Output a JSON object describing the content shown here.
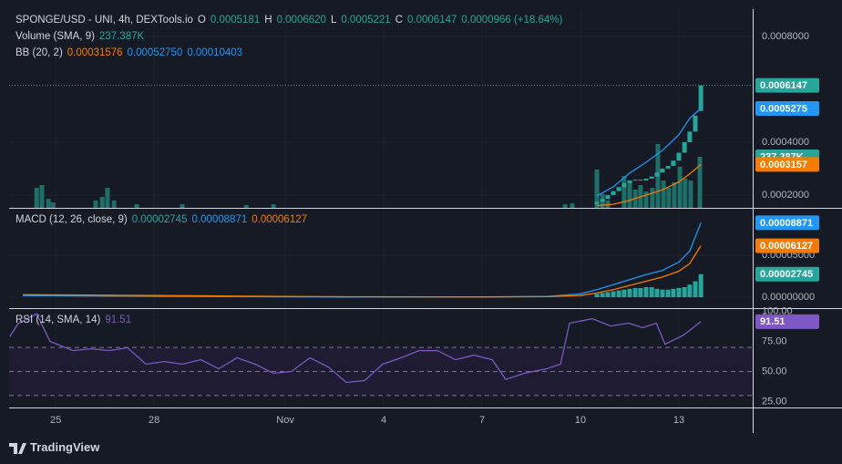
{
  "header": {
    "brand": "TradingView"
  },
  "chart_data": [
    {
      "type": "candlestick",
      "legend": [
        [
          {
            "text": "SPONGE/USD - UNI, 4h, DEXTools.io",
            "color": "#d1d4dc"
          },
          {
            "text": "O",
            "color": "#d1d4dc"
          },
          {
            "text": "0.0005181",
            "color": "#26a69a"
          },
          {
            "text": "H",
            "color": "#d1d4dc"
          },
          {
            "text": "0.0006620",
            "color": "#26a69a"
          },
          {
            "text": "L",
            "color": "#d1d4dc"
          },
          {
            "text": "0.0005221",
            "color": "#26a69a"
          },
          {
            "text": "C",
            "color": "#d1d4dc"
          },
          {
            "text": "0.0006147",
            "color": "#26a69a"
          },
          {
            "text": "0.0000966 (+18.64%)",
            "color": "#26a69a"
          }
        ],
        [
          {
            "text": "Volume (SMA, 9)",
            "color": "#d1d4dc"
          },
          {
            "text": "237.387K",
            "color": "#26a69a"
          }
        ],
        [
          {
            "text": "BB (20, 2)",
            "color": "#d1d4dc"
          },
          {
            "text": "0.00031576",
            "color": "#f57c00"
          },
          {
            "text": "0.00052750",
            "color": "#2196f3"
          },
          {
            "text": "0.00010403",
            "color": "#2196f3"
          }
        ]
      ],
      "ylim": [
        0.0001517,
        0.000903
      ],
      "yticks": [
        {
          "value": 0.0008,
          "label": "0.0008000"
        },
        {
          "value": 0.0004,
          "label": "0.0004000"
        },
        {
          "value": 0.0002,
          "label": "0.0002000"
        }
      ],
      "grid": true,
      "x": [
        41.5,
        41.67,
        41.83,
        42.0,
        42.17,
        42.33,
        42.5,
        42.67,
        42.83,
        43.0,
        43.17,
        43.33,
        43.5,
        43.67,
        43.83,
        44.0,
        44.17,
        44.33,
        44.5,
        44.67
      ],
      "open": [
        0.000165,
        0.000175,
        0.000185,
        0.0002,
        0.000215,
        0.00023,
        0.000245,
        0.000255,
        0.000258,
        0.000255,
        0.000262,
        0.00027,
        0.000285,
        0.0003,
        0.00031,
        0.00033,
        0.00036,
        0.0004,
        0.00044,
        0.0005181
      ],
      "close": [
        0.000175,
        0.000185,
        0.0002,
        0.000215,
        0.00023,
        0.000245,
        0.000255,
        0.000258,
        0.000255,
        0.000262,
        0.00027,
        0.000285,
        0.0003,
        0.00031,
        0.00033,
        0.00036,
        0.0004,
        0.00044,
        0.0005,
        0.0006147
      ],
      "up_color": "#26a69a",
      "down_color": "#ef5350",
      "volume": {
        "color": "#1f6f68",
        "ylim": [
          0,
          924000
        ],
        "x": [
          24.42,
          24.58,
          24.78,
          24.92,
          26.22,
          26.42,
          26.58,
          26.78,
          27.47,
          28.86,
          30.81,
          31.64,
          40.53,
          40.75,
          41.5,
          41.67,
          41.83,
          42.33,
          42.5,
          42.67,
          42.83,
          43.0,
          43.19,
          43.36,
          43.53,
          43.69,
          43.86,
          44.03,
          44.19,
          44.36,
          44.64
        ],
        "values": [
          93000,
          106000,
          42000,
          25000,
          34000,
          51000,
          93000,
          34000,
          17000,
          17000,
          13000,
          17000,
          17000,
          21000,
          178000,
          64000,
          34000,
          148000,
          119000,
          85000,
          106000,
          76000,
          93000,
          297000,
          127000,
          93000,
          119000,
          191000,
          136000,
          127000,
          237387
        ]
      },
      "series": [
        {
          "kind": "line",
          "color": "#2196f3",
          "x": [
            41.5,
            42.0,
            42.5,
            43.0,
            43.5,
            44.0,
            44.33,
            44.67
          ],
          "values": [
            0.000197,
            0.000231,
            0.000283,
            0.000324,
            0.000369,
            0.000428,
            0.00049,
            0.0005275
          ]
        },
        {
          "kind": "line",
          "color": "#f57c00",
          "x": [
            41.5,
            42.0,
            42.5,
            43.0,
            43.5,
            44.0,
            44.33,
            44.67
          ],
          "values": [
            0.00016,
            0.000165,
            0.00018,
            0.0002,
            0.00022,
            0.00025,
            0.00028,
            0.0003157
          ]
        }
      ],
      "tags": [
        {
          "value": 0.0006147,
          "label": "0.0006147",
          "color": "#26a69a",
          "line": true
        },
        {
          "value": 0.0005275,
          "label": "0.0005275",
          "color": "#2196f3"
        },
        {
          "value": 237387,
          "label": "237.387K",
          "color": "#26a69a",
          "scale": "volume"
        },
        {
          "value": 0.0003157,
          "label": "0.0003157",
          "color": "#f57c00"
        }
      ]
    },
    {
      "type": "line",
      "legend": [
        [
          {
            "text": "MACD (12, 26, close, 9)",
            "color": "#d1d4dc"
          },
          {
            "text": "0.00002745",
            "color": "#26a69a"
          },
          {
            "text": "0.00008871",
            "color": "#2196f3"
          },
          {
            "text": "0.00006127",
            "color": "#f57c00"
          }
        ]
      ],
      "ylim": [
        -1.3e-05,
        0.0001054
      ],
      "yticks": [
        {
          "value": 5e-05,
          "label": "0.00005000"
        },
        {
          "value": 0,
          "label": "0.00000000"
        }
      ],
      "grid": true,
      "series": [
        {
          "kind": "histogram",
          "color": "#26a69a",
          "x": [
            41.5,
            41.67,
            41.83,
            42.0,
            42.17,
            42.33,
            42.5,
            42.67,
            42.83,
            43.0,
            43.17,
            43.33,
            43.5,
            43.67,
            43.83,
            44.0,
            44.17,
            44.33,
            44.5,
            44.67
          ],
          "values": [
            4e-06,
            5e-06,
            6e-06,
            7e-06,
            8e-06,
            9e-06,
            1e-05,
            1.1e-05,
            1.1e-05,
            1.2e-05,
            1.2e-05,
            1e-05,
            9e-06,
            9e-06,
            1e-05,
            1.1e-05,
            1.2e-05,
            1.5e-05,
            1.9e-05,
            2.745e-05
          ]
        },
        {
          "kind": "line",
          "color": "#2196f3",
          "x": [
            24,
            26,
            28,
            30,
            32,
            34,
            36,
            38,
            40,
            41,
            41.5,
            42,
            42.5,
            43,
            43.5,
            44,
            44.33,
            44.67
          ],
          "values": [
            2e-06,
            1.5e-06,
            1e-06,
            8e-07,
            5e-07,
            3e-07,
            4e-07,
            3e-07,
            1e-06,
            4e-06,
            9e-06,
            1.5e-05,
            2.1e-05,
            2.7e-05,
            3.2e-05,
            4.2e-05,
            5.5e-05,
            8.871e-05
          ]
        },
        {
          "kind": "line",
          "color": "#f57c00",
          "x": [
            24,
            26,
            28,
            30,
            32,
            34,
            36,
            38,
            40,
            41,
            41.5,
            42,
            42.5,
            43,
            43.5,
            44,
            44.33,
            44.67
          ],
          "values": [
            3e-06,
            2.5e-06,
            2e-06,
            1.5e-06,
            1e-06,
            6e-07,
            5e-07,
            4e-07,
            7e-07,
            2e-06,
            5e-06,
            9e-06,
            1.4e-05,
            1.9e-05,
            2.4e-05,
            3.1e-05,
            4e-05,
            6.127e-05
          ]
        }
      ],
      "tags": [
        {
          "value": 8.871e-05,
          "label": "0.00008871",
          "color": "#2196f3"
        },
        {
          "value": 6.127e-05,
          "label": "0.00006127",
          "color": "#f57c00"
        },
        {
          "value": 2.745e-05,
          "label": "0.00002745",
          "color": "#26a69a"
        }
      ]
    },
    {
      "type": "line",
      "legend": [
        [
          {
            "text": "RSI (14, SMA, 14)",
            "color": "#d1d4dc"
          },
          {
            "text": "91.51",
            "color": "#7e57c2"
          }
        ]
      ],
      "ylim": [
        20,
        102
      ],
      "yticks": [
        {
          "value": 100,
          "label": "100.00"
        },
        {
          "value": 75,
          "label": "75.00"
        },
        {
          "value": 50,
          "label": "50.00"
        },
        {
          "value": 25,
          "label": "25.00"
        }
      ],
      "grid": false,
      "levels": [
        70,
        50,
        30
      ],
      "band_color": "#1e1b33",
      "series": [
        {
          "kind": "line",
          "color": "#7e57c2",
          "x": [
            23.6,
            23.86,
            24.42,
            24.83,
            25.53,
            26.08,
            26.64,
            27.19,
            27.75,
            28.31,
            28.86,
            29.42,
            29.97,
            30.53,
            31.08,
            31.64,
            32.19,
            32.75,
            33.31,
            33.86,
            34.42,
            34.97,
            35.53,
            36.08,
            36.64,
            37.19,
            37.75,
            38.31,
            38.72,
            39.28,
            39.97,
            40.39,
            40.67,
            41.36,
            41.92,
            42.47,
            42.89,
            43.31,
            43.58,
            44.14,
            44.67
          ],
          "values": [
            79,
            90,
            98,
            75,
            67.4,
            68.9,
            67.4,
            69.7,
            56.1,
            58.3,
            56.1,
            59.8,
            52.3,
            61.4,
            56.1,
            48.5,
            50,
            61.4,
            53.8,
            40.9,
            42.4,
            56.1,
            61.4,
            67.4,
            67.4,
            59.8,
            63.6,
            59.8,
            43.2,
            48.5,
            52.3,
            56.1,
            90.2,
            93.9,
            87.9,
            90.2,
            86.4,
            90.2,
            72.7,
            80.3,
            91.51
          ]
        }
      ],
      "tags": [
        {
          "value": 91.51,
          "label": "91.51",
          "color": "#7e57c2"
        }
      ],
      "xlim": [
        23.58,
        46.25
      ],
      "xticks": [
        25,
        28,
        {
          "value": 32,
          "label": "Nov"
        },
        {
          "value": 35,
          "label": "4"
        },
        {
          "value": 38,
          "label": "7"
        },
        {
          "value": 41,
          "label": "10"
        },
        {
          "value": 44,
          "label": "13"
        }
      ]
    }
  ]
}
